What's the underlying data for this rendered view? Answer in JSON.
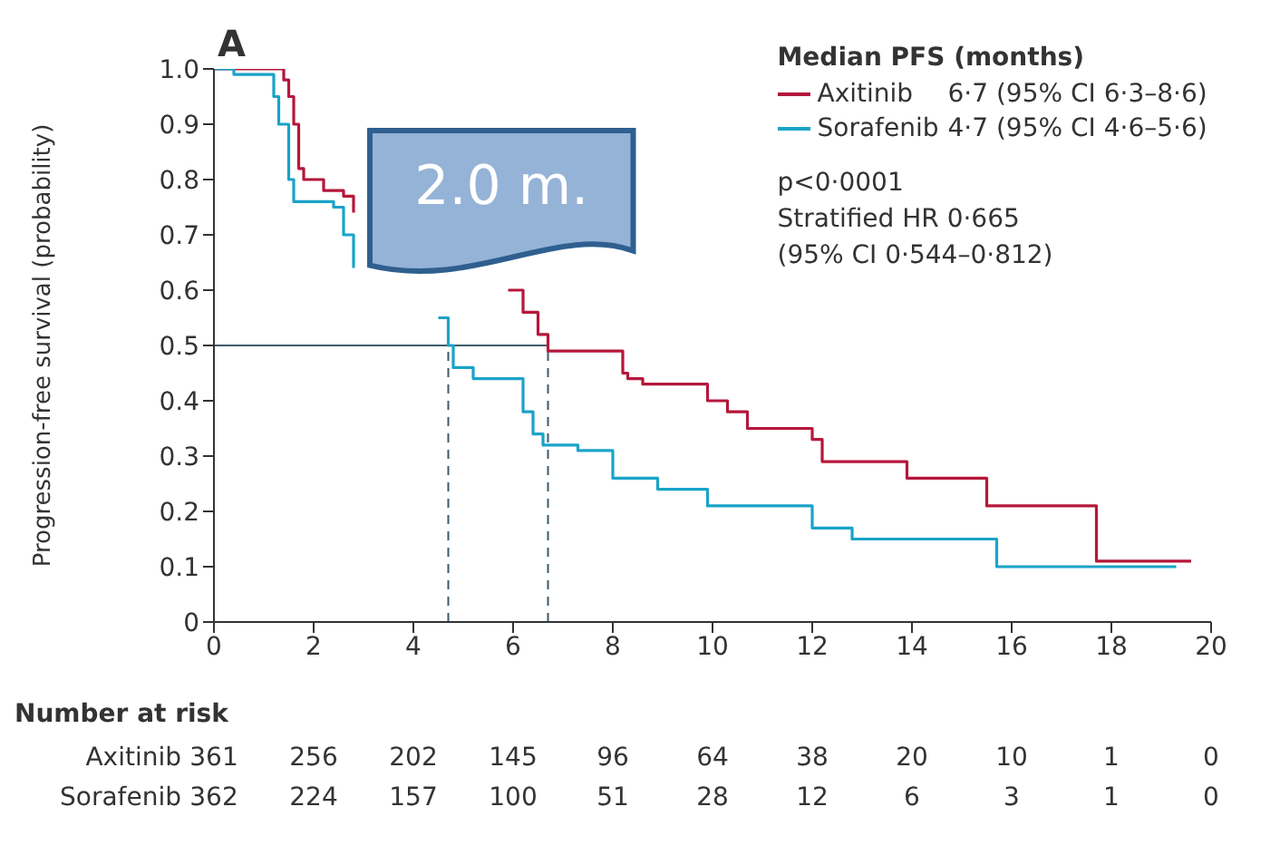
{
  "chart_data": {
    "type": "step",
    "title": "A",
    "ylabel": "Progression-free survival (probability)",
    "legend_title": "Median PFS (months)",
    "legend": "top right",
    "xlim": [
      0,
      20
    ],
    "xticks": [
      0,
      2,
      4,
      6,
      8,
      10,
      12,
      14,
      16,
      18,
      20
    ],
    "ylim": [
      0,
      1
    ],
    "yticks": [
      0,
      0.1,
      0.2,
      0.3,
      0.4,
      0.5,
      0.6,
      0.7,
      0.8,
      0.9,
      {
        "value": 1,
        "label": "1.0"
      }
    ],
    "series": [
      {
        "name": "Axitinib",
        "color": "#b5173b",
        "x": [
          0,
          1.3,
          1.4,
          1.5,
          1.6,
          1.7,
          1.8,
          2.2,
          2.6,
          2.8,
          3.0,
          5.9,
          6.2,
          6.5,
          6.7,
          8.2,
          8.3,
          8.6,
          9.9,
          10.3,
          10.7,
          12.0,
          12.2,
          13.9,
          15.5,
          17.7,
          19.6
        ],
        "values": [
          1.0,
          1.0,
          0.98,
          0.95,
          0.9,
          0.82,
          0.8,
          0.78,
          0.77,
          0.74,
          null,
          0.6,
          0.56,
          0.52,
          0.49,
          0.45,
          0.44,
          0.43,
          0.4,
          0.38,
          0.35,
          0.33,
          0.29,
          0.26,
          0.21,
          0.11,
          0.11
        ]
      },
      {
        "name": "Sorafenib",
        "color": "#1aa3c8",
        "x": [
          0,
          0.4,
          1.2,
          1.3,
          1.5,
          1.6,
          2.4,
          2.6,
          2.8,
          2.9,
          4.5,
          4.7,
          4.8,
          5.2,
          6.2,
          6.4,
          6.6,
          7.3,
          8.0,
          8.9,
          9.9,
          12.0,
          12.8,
          15.7,
          19.3
        ],
        "values": [
          1.0,
          0.99,
          0.95,
          0.9,
          0.8,
          0.76,
          0.75,
          0.7,
          0.64,
          null,
          0.55,
          0.5,
          0.46,
          0.44,
          0.38,
          0.34,
          0.32,
          0.31,
          0.26,
          0.24,
          0.21,
          0.17,
          0.15,
          0.1,
          0.1
        ]
      }
    ],
    "ref_lines": [
      {
        "axis": "y",
        "value": 0.5,
        "color": "#3d5a6b",
        "line_style": "solid"
      },
      {
        "axis": "x",
        "value": 4.7,
        "color": "#3d5a6b",
        "line_style": "dashed"
      },
      {
        "axis": "x",
        "value": 6.7,
        "color": "#3d5a6b",
        "line_style": "dashed"
      }
    ],
    "annotations": [
      "6·7 (95% CI 6·3–8·6)",
      "4·7 (95% CI 4·6–5·6)",
      "p<0·0001",
      "Stratified HR 0·665",
      "(95% CI 0·544–0·812)",
      "2.0 m.",
      "Number at risk",
      "Axitinib 361 256 202 145 96 64 38 20 10 1 0",
      "Sorafenib 362 224 157 100 51 28 12 6 3 1 0"
    ]
  }
}
